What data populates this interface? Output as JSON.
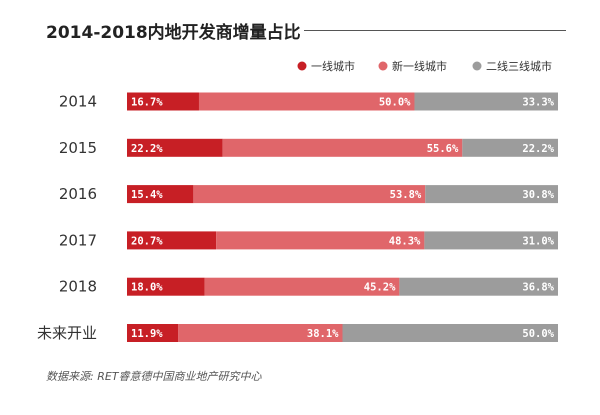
{
  "title": "2014-2018内地开发商增量占比",
  "source": "数据来源: RET睿意德中国商业地产研究中心",
  "chart_data": {
    "type": "bar",
    "orientation": "horizontal",
    "stacked": true,
    "percent_stacked": true,
    "title": "2014-2018内地开发商增量占比",
    "categories": [
      "2014",
      "2015",
      "2016",
      "2017",
      "2018",
      "未来开业"
    ],
    "series": [
      {
        "name": "一线城市",
        "color": "#c71f25",
        "values": [
          16.7,
          22.2,
          15.4,
          20.7,
          18.0,
          11.9
        ],
        "labels": [
          "16.7%",
          "22.2%",
          "15.4%",
          "20.7%",
          "18.0%",
          "11.9%"
        ]
      },
      {
        "name": "新一线城市",
        "color": "#e0666a",
        "values": [
          50.0,
          55.6,
          53.8,
          48.3,
          45.2,
          38.1
        ],
        "labels": [
          "50.0%",
          "55.6%",
          "53.8%",
          "48.3%",
          "45.2%",
          "38.1%"
        ]
      },
      {
        "name": "二线三线城市",
        "color": "#9c9c9c",
        "values": [
          33.3,
          22.2,
          30.8,
          31.0,
          36.8,
          50.0
        ],
        "labels": [
          "33.3%",
          "22.2%",
          "30.8%",
          "31.0%",
          "36.8%",
          "50.0%"
        ]
      }
    ],
    "legend": "top-right",
    "grid": false
  }
}
